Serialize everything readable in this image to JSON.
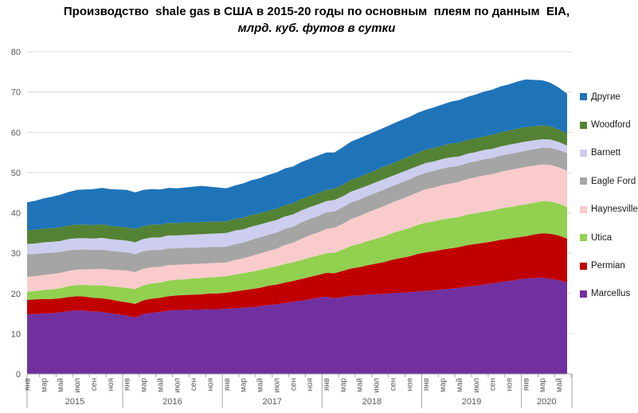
{
  "title": {
    "line1": "Производство  shale gas в США в 2015-20 годы по основным  плеям по данным  EIA,",
    "line2": "млрд. куб. футов в сутки"
  },
  "chart_data": {
    "type": "area",
    "stacked": true,
    "title": "Производство shale gas в США в 2015-20 годы по основным плеям по данным EIA",
    "ylabel": "млрд. куб. футов в сутки",
    "grid": true,
    "legend_position": "right",
    "y_axis": {
      "min": 0,
      "max": 80,
      "step": 10,
      "ticks": [
        0,
        10,
        20,
        30,
        40,
        50,
        60,
        70,
        80
      ]
    },
    "x_axis": {
      "month_labels": [
        "янв",
        "мар",
        "май",
        "июл",
        "сен",
        "ноя"
      ],
      "years": [
        {
          "label": "2015",
          "months": 12
        },
        {
          "label": "2016",
          "months": 12
        },
        {
          "label": "2017",
          "months": 12
        },
        {
          "label": "2018",
          "months": 12
        },
        {
          "label": "2019",
          "months": 12
        },
        {
          "label": "2020",
          "months": 6
        }
      ],
      "n_points": 66,
      "start": "янв 2015",
      "end": "июн 2020"
    },
    "series": [
      {
        "key": "marcellus",
        "name": "Marcellus",
        "color": "#7030A0",
        "values": [
          14.8,
          14.9,
          15.0,
          15.1,
          15.3,
          15.6,
          15.8,
          15.7,
          15.5,
          15.4,
          15.1,
          14.8,
          14.5,
          14.0,
          14.9,
          15.2,
          15.4,
          15.7,
          15.9,
          15.9,
          16.0,
          16.0,
          16.1,
          16.1,
          16.2,
          16.3,
          16.5,
          16.6,
          16.8,
          17.1,
          17.3,
          17.6,
          17.9,
          18.2,
          18.5,
          18.9,
          19.2,
          18.8,
          19.1,
          19.4,
          19.5,
          19.7,
          19.8,
          19.9,
          20.1,
          20.2,
          20.3,
          20.5,
          20.6,
          20.8,
          21.0,
          21.2,
          21.4,
          21.7,
          21.9,
          22.2,
          22.5,
          22.8,
          23.1,
          23.4,
          23.7,
          23.8,
          23.9,
          23.6,
          23.3,
          22.7
        ]
      },
      {
        "key": "permian",
        "name": "Permian",
        "color": "#C00000",
        "values": [
          3.6,
          3.6,
          3.6,
          3.5,
          3.5,
          3.5,
          3.5,
          3.5,
          3.4,
          3.4,
          3.4,
          3.3,
          3.3,
          3.4,
          3.4,
          3.5,
          3.5,
          3.6,
          3.6,
          3.7,
          3.7,
          3.8,
          3.9,
          3.9,
          4.0,
          4.2,
          4.3,
          4.5,
          4.6,
          4.8,
          4.9,
          5.1,
          5.2,
          5.4,
          5.6,
          5.7,
          5.9,
          6.2,
          6.5,
          6.8,
          7.0,
          7.3,
          7.6,
          7.9,
          8.3,
          8.6,
          8.9,
          9.3,
          9.6,
          9.7,
          9.9,
          10.0,
          10.1,
          10.3,
          10.4,
          10.4,
          10.4,
          10.5,
          10.5,
          10.5,
          10.5,
          10.8,
          11.0,
          11.2,
          11.1,
          10.9
        ]
      },
      {
        "key": "utica",
        "name": "Utica",
        "color": "#92D050",
        "values": [
          2.0,
          2.1,
          2.3,
          2.4,
          2.5,
          2.7,
          2.8,
          2.9,
          3.1,
          3.2,
          3.3,
          3.5,
          3.6,
          3.7,
          3.7,
          3.8,
          3.8,
          3.9,
          3.9,
          3.9,
          4.0,
          4.0,
          4.0,
          4.1,
          4.1,
          4.2,
          4.2,
          4.3,
          4.4,
          4.4,
          4.5,
          4.6,
          4.6,
          4.7,
          4.8,
          4.8,
          4.9,
          5.1,
          5.3,
          5.6,
          5.8,
          6.0,
          6.2,
          6.4,
          6.6,
          6.8,
          7.0,
          7.2,
          7.4,
          7.4,
          7.5,
          7.5,
          7.5,
          7.6,
          7.6,
          7.7,
          7.7,
          7.8,
          7.8,
          7.9,
          7.9,
          7.9,
          8.0,
          8.0,
          7.9,
          7.9
        ]
      },
      {
        "key": "haynesville",
        "name": "Haynesville",
        "color": "#F9CCCB",
        "values": [
          3.7,
          3.7,
          3.7,
          3.8,
          3.8,
          3.8,
          3.8,
          3.9,
          4.0,
          4.1,
          4.1,
          4.2,
          4.3,
          4.2,
          4.1,
          4.0,
          3.9,
          3.8,
          3.7,
          3.7,
          3.6,
          3.6,
          3.5,
          3.5,
          3.4,
          3.6,
          3.7,
          3.9,
          4.1,
          4.2,
          4.4,
          4.7,
          4.9,
          5.2,
          5.5,
          5.7,
          6.0,
          6.2,
          6.4,
          6.7,
          6.9,
          7.1,
          7.3,
          7.5,
          7.6,
          7.8,
          8.0,
          8.1,
          8.3,
          8.4,
          8.5,
          8.6,
          8.7,
          8.8,
          8.9,
          9.0,
          9.0,
          9.1,
          9.2,
          9.2,
          9.3,
          9.2,
          9.1,
          9.1,
          9.0,
          8.9
        ]
      },
      {
        "key": "eagle-ford",
        "name": "Eagle Ford",
        "color": "#A5A5A5",
        "values": [
          5.6,
          5.5,
          5.4,
          5.3,
          5.2,
          5.1,
          5.0,
          4.9,
          4.8,
          4.8,
          4.7,
          4.6,
          4.5,
          4.4,
          4.4,
          4.3,
          4.2,
          4.2,
          4.1,
          4.1,
          4.0,
          4.0,
          4.0,
          3.9,
          3.9,
          3.9,
          3.9,
          4.0,
          4.0,
          4.0,
          4.0,
          4.0,
          4.0,
          4.1,
          4.1,
          4.1,
          4.1,
          4.1,
          4.1,
          4.1,
          4.1,
          4.1,
          4.1,
          4.1,
          4.1,
          4.1,
          4.1,
          4.1,
          4.1,
          4.1,
          4.1,
          4.1,
          4.0,
          4.0,
          4.0,
          4.0,
          4.0,
          4.0,
          4.0,
          4.0,
          4.0,
          4.1,
          4.2,
          4.2,
          4.3,
          4.4
        ]
      },
      {
        "key": "barnett",
        "name": "Barnett",
        "color": "#CDCDEF",
        "values": [
          2.6,
          2.6,
          2.7,
          2.7,
          2.7,
          2.8,
          2.8,
          2.8,
          2.8,
          2.9,
          2.9,
          2.9,
          2.9,
          3.0,
          3.0,
          3.1,
          3.1,
          3.2,
          3.2,
          3.2,
          3.3,
          3.3,
          3.3,
          3.4,
          3.4,
          3.4,
          3.3,
          3.3,
          3.2,
          3.2,
          3.1,
          3.1,
          3.0,
          3.0,
          2.9,
          2.9,
          2.8,
          2.8,
          2.7,
          2.7,
          2.7,
          2.6,
          2.6,
          2.6,
          2.5,
          2.5,
          2.5,
          2.4,
          2.4,
          2.4,
          2.4,
          2.4,
          2.3,
          2.3,
          2.3,
          2.3,
          2.3,
          2.3,
          2.3,
          2.3,
          2.3,
          2.2,
          2.1,
          2.1,
          2.0,
          1.9
        ]
      },
      {
        "key": "woodford",
        "name": "Woodford",
        "color": "#548235",
        "values": [
          3.4,
          3.4,
          3.4,
          3.4,
          3.4,
          3.4,
          3.4,
          3.4,
          3.4,
          3.4,
          3.3,
          3.3,
          3.3,
          3.3,
          3.2,
          3.2,
          3.2,
          3.1,
          3.1,
          3.1,
          3.0,
          3.0,
          3.0,
          2.9,
          2.9,
          2.9,
          2.9,
          2.9,
          2.8,
          2.8,
          2.8,
          2.8,
          2.8,
          2.8,
          2.8,
          2.8,
          2.8,
          2.8,
          2.9,
          2.9,
          2.9,
          3.0,
          3.0,
          3.1,
          3.1,
          3.2,
          3.2,
          3.3,
          3.3,
          3.3,
          3.3,
          3.4,
          3.4,
          3.4,
          3.4,
          3.4,
          3.5,
          3.5,
          3.5,
          3.6,
          3.6,
          3.5,
          3.4,
          3.3,
          3.1,
          3.0
        ]
      },
      {
        "key": "other",
        "name": "Другие",
        "color": "#1F74B8",
        "values": [
          6.9,
          7.2,
          7.5,
          7.8,
          8.1,
          8.3,
          8.6,
          8.7,
          8.9,
          9.0,
          9.1,
          9.2,
          9.3,
          9.1,
          9.0,
          8.8,
          8.7,
          8.7,
          8.6,
          8.7,
          8.9,
          9.0,
          8.7,
          8.5,
          8.2,
          8.3,
          8.5,
          8.6,
          8.7,
          8.9,
          9.0,
          9.1,
          9.1,
          9.2,
          9.2,
          9.3,
          9.3,
          9.0,
          9.3,
          9.5,
          9.6,
          9.6,
          9.7,
          9.7,
          9.8,
          9.8,
          9.8,
          9.9,
          9.9,
          10.1,
          10.2,
          10.4,
          10.6,
          10.7,
          10.9,
          11.1,
          11.2,
          11.4,
          11.5,
          11.7,
          11.8,
          11.5,
          11.2,
          10.8,
          10.4,
          9.9
        ]
      }
    ]
  },
  "legend": {
    "items": [
      {
        "label": "Другие",
        "color": "#1F74B8"
      },
      {
        "label": "Woodford",
        "color": "#548235"
      },
      {
        "label": "Barnett",
        "color": "#CDCDEF"
      },
      {
        "label": "Eagle Ford",
        "color": "#A5A5A5"
      },
      {
        "label": "Haynesville",
        "color": "#F9CCCB"
      },
      {
        "label": "Utica",
        "color": "#92D050"
      },
      {
        "label": "Permian",
        "color": "#C00000"
      },
      {
        "label": "Marcellus",
        "color": "#7030A0"
      }
    ]
  },
  "axis_colors": {
    "grid": "#D9D9D9",
    "axis_line": "#A6A6A6",
    "tick_text": "#595959"
  }
}
